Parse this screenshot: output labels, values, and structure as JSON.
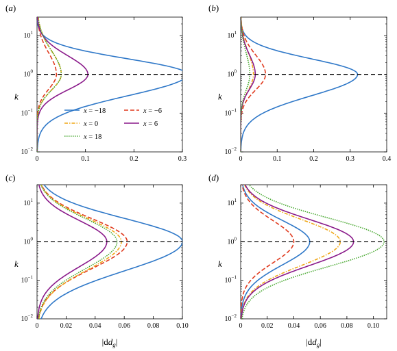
{
  "figure": {
    "y_label": "k",
    "x_label_display": "|d",
    "x_label_sub": "g",
    "x_label_close": "|"
  },
  "chart_data": [
    {
      "panel": "(a)",
      "type": "line",
      "xlim": [
        0,
        0.3
      ],
      "xticks": [
        0,
        0.1,
        0.2,
        0.3
      ],
      "xtick_labels": [
        "0",
        "0.1",
        "0.2",
        "0.3"
      ],
      "ylim": [
        0.01,
        30
      ],
      "yscale": "log",
      "ytick_labels": [
        "10^1",
        "10^0",
        "10^-1",
        "10^-2"
      ],
      "reference_line": {
        "y": 1,
        "style": "dashed",
        "color": "#000000"
      },
      "legend": {
        "placement": "center",
        "entries": [
          {
            "label": "x = −18",
            "series": "x=-18"
          },
          {
            "label": "x = −6",
            "series": "x=-6"
          },
          {
            "label": "x = 0",
            "series": "x=0"
          },
          {
            "label": "x = 6",
            "series": "x=6"
          },
          {
            "label": "x = 18",
            "series": "x=18"
          }
        ]
      },
      "series": [
        {
          "name": "x = −18",
          "peak": 0.31,
          "wlow": 0.55,
          "whigh": 0.4,
          "ylow": 0.01
        },
        {
          "name": "x = −6",
          "peak": 0.04,
          "wlow": 0.38,
          "whigh": 0.55,
          "ylow": 0.01
        },
        {
          "name": "x = 0",
          "peak": 0.05,
          "wlow": 0.4,
          "whigh": 0.6,
          "ylow": 0.01
        },
        {
          "name": "x = 6",
          "peak": 0.105,
          "wlow": 0.4,
          "whigh": 0.48,
          "ylow": 0.01
        },
        {
          "name": "x = 18",
          "peak": 0.05,
          "wlow": 0.4,
          "whigh": 0.6,
          "ylow": 0.01
        }
      ]
    },
    {
      "panel": "(b)",
      "type": "line",
      "xlim": [
        0,
        0.4
      ],
      "xticks": [
        0,
        0.1,
        0.2,
        0.3,
        0.4
      ],
      "xtick_labels": [
        "0",
        "0.1",
        "0.2",
        "0.3",
        "0.4"
      ],
      "ylim": [
        0.01,
        30
      ],
      "yscale": "log",
      "ytick_labels": [
        "10^1",
        "10^0",
        "10^-1",
        "10^-2"
      ],
      "reference_line": {
        "y": 1,
        "style": "dashed",
        "color": "#000000"
      },
      "series": [
        {
          "name": "x = −18",
          "peak": 0.32,
          "wlow": 0.55,
          "whigh": 0.4,
          "ylow": 0.01
        },
        {
          "name": "x = −6",
          "peak": 0.068,
          "wlow": 0.4,
          "whigh": 0.5,
          "ylow": 0.02
        },
        {
          "name": "x = 0",
          "peak": 0.035,
          "wlow": 0.4,
          "whigh": 0.55,
          "ylow": 0.01
        },
        {
          "name": "x = 6",
          "peak": 0.04,
          "wlow": 0.38,
          "whigh": 0.5,
          "ylow": 0.01
        },
        {
          "name": "x = 18",
          "peak": 0.025,
          "wlow": 0.4,
          "whigh": 0.55,
          "ylow": 0.01
        }
      ]
    },
    {
      "panel": "(c)",
      "type": "line",
      "xlim": [
        0,
        0.1
      ],
      "xticks": [
        0,
        0.02,
        0.04,
        0.06,
        0.08,
        0.1
      ],
      "xtick_labels": [
        "0",
        "0.02",
        "0.04",
        "0.06",
        "0.08",
        "0.10"
      ],
      "ylim": [
        0.01,
        30
      ],
      "yscale": "log",
      "ytick_labels": [
        "10^1",
        "10^0",
        "10^-1",
        "10^-2"
      ],
      "reference_line": {
        "y": 1,
        "style": "dashed",
        "color": "#000000"
      },
      "series": [
        {
          "name": "x = −18",
          "peak": 0.1,
          "wlow": 0.75,
          "whigh": 0.6,
          "ylow": 0.01
        },
        {
          "name": "x = −6",
          "peak": 0.062,
          "wlow": 0.7,
          "whigh": 0.6,
          "ylow": 0.01
        },
        {
          "name": "x = 0",
          "peak": 0.058,
          "wlow": 0.72,
          "whigh": 0.6,
          "ylow": 0.01
        },
        {
          "name": "x = 6",
          "peak": 0.048,
          "wlow": 0.65,
          "whigh": 0.55,
          "ylow": 0.01
        },
        {
          "name": "x = 18",
          "peak": 0.055,
          "wlow": 0.7,
          "whigh": 0.6,
          "ylow": 0.01
        }
      ]
    },
    {
      "panel": "(d)",
      "type": "line",
      "xlim": [
        0,
        0.11
      ],
      "xticks": [
        0,
        0.02,
        0.04,
        0.06,
        0.08,
        0.1
      ],
      "xtick_labels": [
        "0",
        "0.02",
        "0.04",
        "0.06",
        "0.08",
        "0.10"
      ],
      "ylim": [
        0.01,
        30
      ],
      "yscale": "log",
      "ytick_labels": [
        "10^1",
        "10^0",
        "10^-1",
        "10^-2"
      ],
      "reference_line": {
        "y": 1,
        "style": "dashed",
        "color": "#000000"
      },
      "series": [
        {
          "name": "x = −18",
          "peak": 0.052,
          "wlow": 0.6,
          "whigh": 0.55,
          "ylow": 0.01
        },
        {
          "name": "x = −6",
          "peak": 0.04,
          "wlow": 0.55,
          "whigh": 0.55,
          "ylow": 0.01
        },
        {
          "name": "x = 0",
          "peak": 0.075,
          "wlow": 0.62,
          "whigh": 0.58,
          "ylow": 0.01
        },
        {
          "name": "x = 6",
          "peak": 0.085,
          "wlow": 0.62,
          "whigh": 0.58,
          "ylow": 0.01
        },
        {
          "name": "x = 18",
          "peak": 0.108,
          "wlow": 0.65,
          "whigh": 0.62,
          "ylow": 0.01
        }
      ]
    }
  ],
  "series_styles": {
    "x = −18": {
      "color": "#2f78c8",
      "dash": ""
    },
    "x = −6": {
      "color": "#e03a1e",
      "dash": "6,3"
    },
    "x = 0": {
      "color": "#f0a818",
      "dash": "5,2,1.5,2"
    },
    "x = 6": {
      "color": "#8a1a8a",
      "dash": ""
    },
    "x = 18": {
      "color": "#48a830",
      "dash": "1.5,1.5"
    }
  }
}
